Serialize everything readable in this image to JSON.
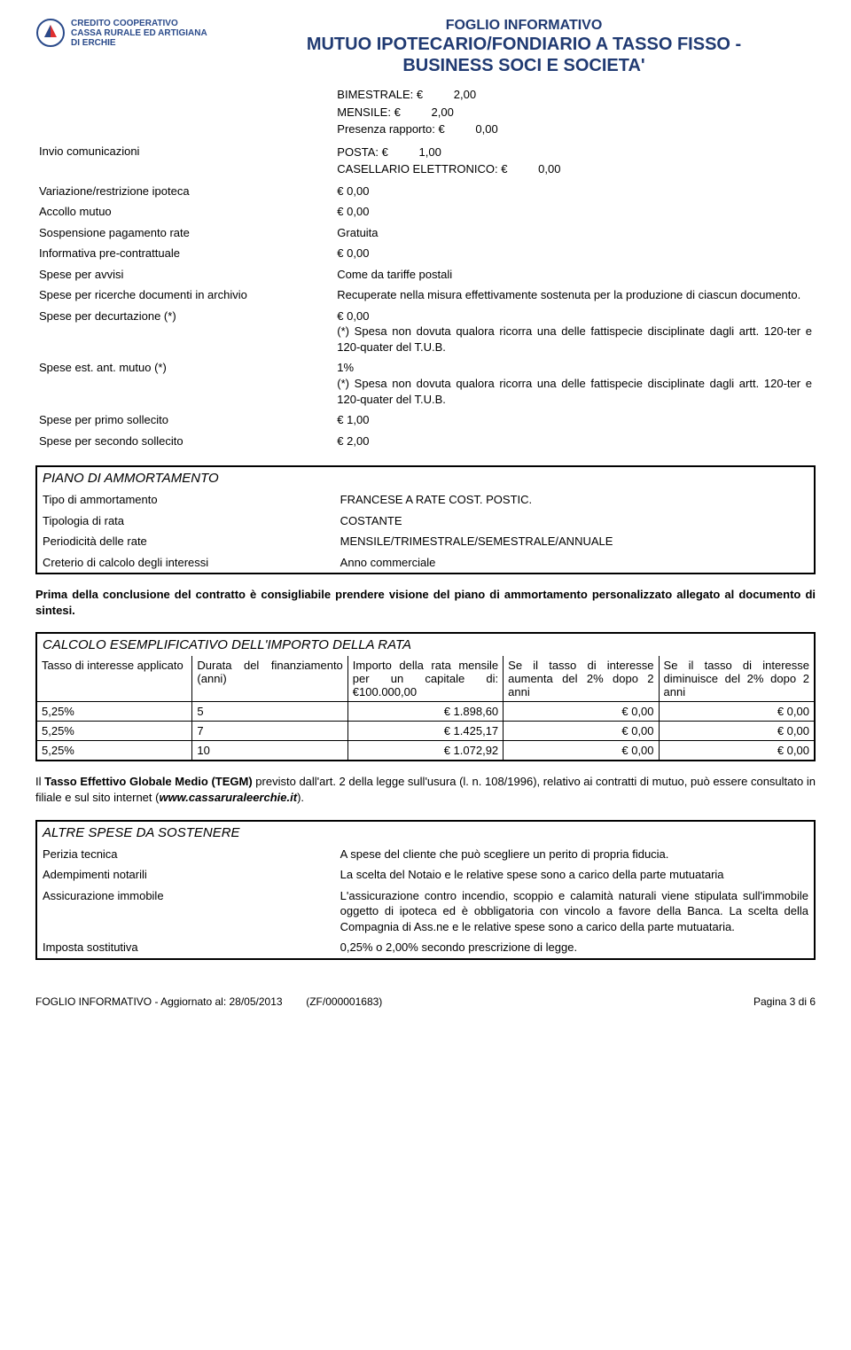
{
  "colors": {
    "title_color": "#203a72",
    "logo_text_color": "#2a4a8a",
    "logo_primary": "#2a4a8a",
    "logo_secondary": "#e03030",
    "border": "#000000",
    "text": "#000000",
    "bg": "#ffffff"
  },
  "logo": {
    "line1": "CREDITO COOPERATIVO",
    "line2": "CASSA RURALE ED ARTIGIANA",
    "line3": "DI ERCHIE"
  },
  "title": {
    "line1": "FOGLIO INFORMATIVO",
    "line2": "MUTUO IPOTECARIO/FONDIARIO A TASSO FISSO -",
    "line3": "BUSINESS SOCI E SOCIETA'"
  },
  "top_mini": {
    "l1_k": "BIMESTRALE: €",
    "l1_v": "2,00",
    "l2_k": "MENSILE: €",
    "l2_v": "2,00",
    "l3_k": "Presenza rapporto: €",
    "l3_v": "0,00"
  },
  "rows1": [
    {
      "label": "Invio comunicazioni",
      "value_mini": {
        "l1_k": "POSTA: €",
        "l1_v": "1,00",
        "l2_k": "CASELLARIO ELETTRONICO: €",
        "l2_v": "0,00"
      }
    },
    {
      "label": "Variazione/restrizione ipoteca",
      "value": "€        0,00"
    },
    {
      "label": "Accollo mutuo",
      "value": "€        0,00"
    },
    {
      "label": "Sospensione pagamento rate",
      "value": "Gratuita"
    },
    {
      "label": "Informativa pre-contrattuale",
      "value": "€        0,00"
    },
    {
      "label": "Spese per avvisi",
      "value": "Come da tariffe postali"
    },
    {
      "label": "Spese per ricerche documenti in archivio",
      "value": "Recuperate nella misura effettivamente sostenuta per la produzione di ciascun documento."
    },
    {
      "label": "Spese per decurtazione (*)",
      "value": "€        0,00\n(*) Spesa non dovuta qualora ricorra una delle fattispecie disciplinate dagli artt. 120-ter e 120-quater del T.U.B."
    },
    {
      "label": "Spese est. ant. mutuo (*)",
      "value": "1%\n(*) Spesa non dovuta qualora ricorra una delle fattispecie disciplinate dagli artt. 120-ter e 120-quater del T.U.B."
    },
    {
      "label": "Spese per primo sollecito",
      "value": "€        1,00"
    },
    {
      "label": "Spese per secondo sollecito",
      "value": "€        2,00"
    }
  ],
  "piano": {
    "title": "PIANO DI AMMORTAMENTO",
    "rows": [
      {
        "label": "Tipo di ammortamento",
        "value": "FRANCESE A RATE COST. POSTIC."
      },
      {
        "label": "Tipologia di rata",
        "value": "COSTANTE"
      },
      {
        "label": "Periodicità delle rate",
        "value": "MENSILE/TRIMESTRALE/SEMESTRALE/ANNUALE"
      },
      {
        "label": "Creterio di calcolo degli interessi",
        "value": "Anno commerciale"
      }
    ]
  },
  "paragraph1": "Prima della conclusione del contratto è consigliabile prendere visione del piano di ammortamento personalizzato allegato al documento di sintesi.",
  "calc": {
    "title": "CALCOLO ESEMPLIFICATIVO DELL'IMPORTO DELLA RATA",
    "headers": [
      "Tasso di interesse applicato",
      "Durata del finanziamento (anni)",
      "Importo della rata mensile per un capitale di: €100.000,00",
      "Se il tasso di interesse aumenta del 2% dopo 2 anni",
      "Se il tasso di interesse diminuisce del 2% dopo 2 anni"
    ],
    "col_widths": [
      "20%",
      "20%",
      "20%",
      "20%",
      "20%"
    ],
    "rows": [
      [
        "5,25%",
        "5",
        "€  1.898,60",
        "€        0,00",
        "€        0,00"
      ],
      [
        "5,25%",
        "7",
        "€  1.425,17",
        "€        0,00",
        "€        0,00"
      ],
      [
        "5,25%",
        "10",
        "€  1.072,92",
        "€        0,00",
        "€        0,00"
      ]
    ]
  },
  "tegm_prefix": "Il ",
  "tegm_bold": "Tasso Effettivo Globale Medio (TEGM)",
  "tegm_mid": " previsto dall'art. 2 della legge sull'usura (l. n. 108/1996), relativo ai contratti di mutuo, può essere consultato in filiale e sul sito internet (",
  "tegm_site": "www.cassaruraleerchie.it",
  "tegm_suffix": ").",
  "altre": {
    "title": "ALTRE SPESE DA SOSTENERE",
    "rows": [
      {
        "label": "Perizia tecnica",
        "value": "A spese del cliente che può scegliere un perito di propria fiducia."
      },
      {
        "label": "Adempimenti notarili",
        "value": "La scelta del Notaio e le relative spese sono a carico della parte mutuataria"
      },
      {
        "label": "Assicurazione immobile",
        "value": "L'assicurazione contro incendio, scoppio e calamità naturali viene stipulata sull'immobile oggetto di ipoteca ed è obbligatoria con vincolo a favore della Banca. La scelta della Compagnia di Ass.ne e le relative spese sono a carico della parte mutuataria."
      },
      {
        "label": "Imposta sostitutiva",
        "value": "0,25% o 2,00% secondo prescrizione di legge."
      }
    ]
  },
  "footer": {
    "left": "FOGLIO INFORMATIVO - Aggiornato al: 28/05/2013",
    "mid": "(ZF/000001683)",
    "right": "Pagina 3 di 6"
  }
}
